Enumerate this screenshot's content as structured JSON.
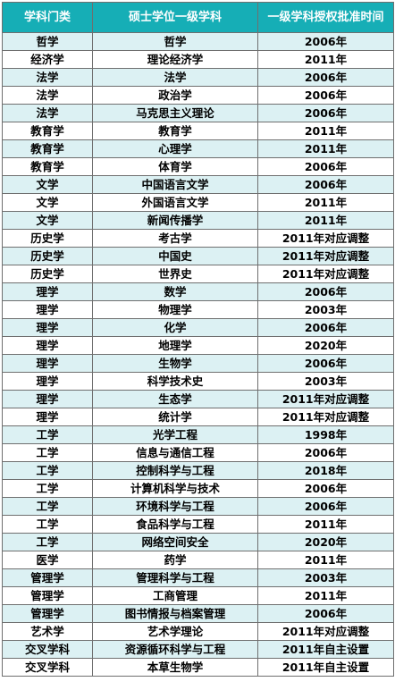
{
  "table": {
    "headers": [
      "学科门类",
      "硕士学位一级学科",
      "一级学科授权批准时间"
    ],
    "rows": [
      [
        "哲学",
        "哲学",
        "2006年"
      ],
      [
        "经济学",
        "理论经济学",
        "2011年"
      ],
      [
        "法学",
        "法学",
        "2006年"
      ],
      [
        "法学",
        "政治学",
        "2006年"
      ],
      [
        "法学",
        "马克思主义理论",
        "2006年"
      ],
      [
        "教育学",
        "教育学",
        "2011年"
      ],
      [
        "教育学",
        "心理学",
        "2011年"
      ],
      [
        "教育学",
        "体育学",
        "2006年"
      ],
      [
        "文学",
        "中国语言文学",
        "2006年"
      ],
      [
        "文学",
        "外国语言文学",
        "2011年"
      ],
      [
        "文学",
        "新闻传播学",
        "2011年"
      ],
      [
        "历史学",
        "考古学",
        "2011年对应调整"
      ],
      [
        "历史学",
        "中国史",
        "2011年对应调整"
      ],
      [
        "历史学",
        "世界史",
        "2011年对应调整"
      ],
      [
        "理学",
        "数学",
        "2006年"
      ],
      [
        "理学",
        "物理学",
        "2003年"
      ],
      [
        "理学",
        "化学",
        "2006年"
      ],
      [
        "理学",
        "地理学",
        "2020年"
      ],
      [
        "理学",
        "生物学",
        "2006年"
      ],
      [
        "理学",
        "科学技术史",
        "2003年"
      ],
      [
        "理学",
        "生态学",
        "2011年对应调整"
      ],
      [
        "理学",
        "统计学",
        "2011年对应调整"
      ],
      [
        "工学",
        "光学工程",
        "1998年"
      ],
      [
        "工学",
        "信息与通信工程",
        "2006年"
      ],
      [
        "工学",
        "控制科学与工程",
        "2018年"
      ],
      [
        "工学",
        "计算机科学与技术",
        "2006年"
      ],
      [
        "工学",
        "环境科学与工程",
        "2006年"
      ],
      [
        "工学",
        "食品科学与工程",
        "2011年"
      ],
      [
        "工学",
        "网络空间安全",
        "2020年"
      ],
      [
        "医学",
        "药学",
        "2011年"
      ],
      [
        "管理学",
        "管理科学与工程",
        "2003年"
      ],
      [
        "管理学",
        "工商管理",
        "2011年"
      ],
      [
        "管理学",
        "图书情报与档案管理",
        "2006年"
      ],
      [
        "艺术学",
        "艺术学理论",
        "2011年对应调整"
      ],
      [
        "交叉学科",
        "资源循环科学与工程",
        "2011年自主设置"
      ],
      [
        "交叉学科",
        "本草生物学",
        "2011年自主设置"
      ]
    ]
  }
}
